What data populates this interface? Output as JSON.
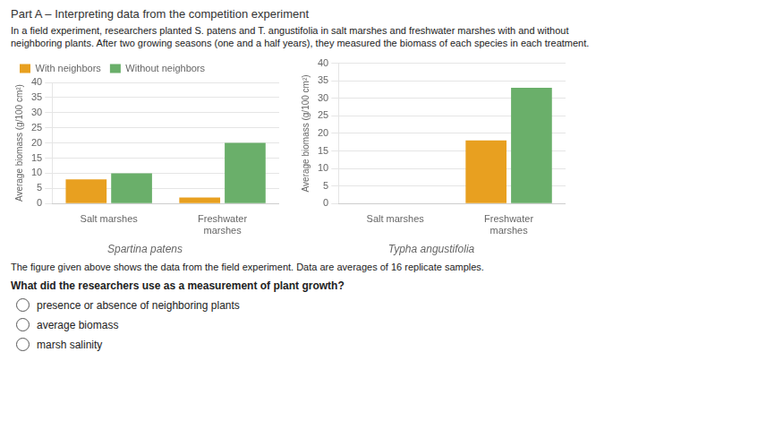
{
  "title": "Part A – Interpreting data from the competition experiment",
  "annotations": [
    "In a field experiment, researchers planted S. patens and T. angustifolia in salt marshes and freshwater marshes with and without",
    "neighboring plants. After two growing seasons (one and a half years), they measured the biomass of each species in each treatment.",
    "The figure given above shows the data from the field experiment. Data are averages of 16 replicate samples.",
    "What did the researchers use as a measurement of plant growth?",
    "presence or absence of neighboring plants",
    "average biomass",
    "marsh salinity"
  ],
  "chart_data": [
    {
      "type": "bar",
      "title": "Spartina patens",
      "categories": [
        "Salt marshes",
        "Freshwater\nmarshes"
      ],
      "series": [
        {
          "name": "With neighbors",
          "color": "#E8A020",
          "values": [
            8,
            2
          ]
        },
        {
          "name": "Without neighbors",
          "color": "#6AAF6A",
          "values": [
            10,
            20
          ]
        }
      ],
      "y_label": "Average biomass (g/100 cm²)",
      "ylim": [
        0,
        40
      ],
      "yticks": [
        0,
        5,
        10,
        15,
        20,
        25,
        30,
        35,
        40
      ],
      "grid": true,
      "legend": "upper left"
    },
    {
      "type": "bar",
      "title": "Typha angustifolia",
      "categories": [
        "Salt marshes",
        "Freshwater\nmarshes"
      ],
      "series": [
        {
          "name": "With neighbors",
          "color": "#E8A020",
          "values": [
            0,
            18
          ]
        },
        {
          "name": "Without neighbors",
          "color": "#6AAF6A",
          "values": [
            0,
            33
          ]
        }
      ],
      "y_label": "Average biomass (g/100 cm²)",
      "ylim": [
        0,
        40
      ],
      "yticks": [
        0,
        5,
        10,
        15,
        20,
        25,
        30,
        35,
        40
      ],
      "grid": true
    }
  ]
}
